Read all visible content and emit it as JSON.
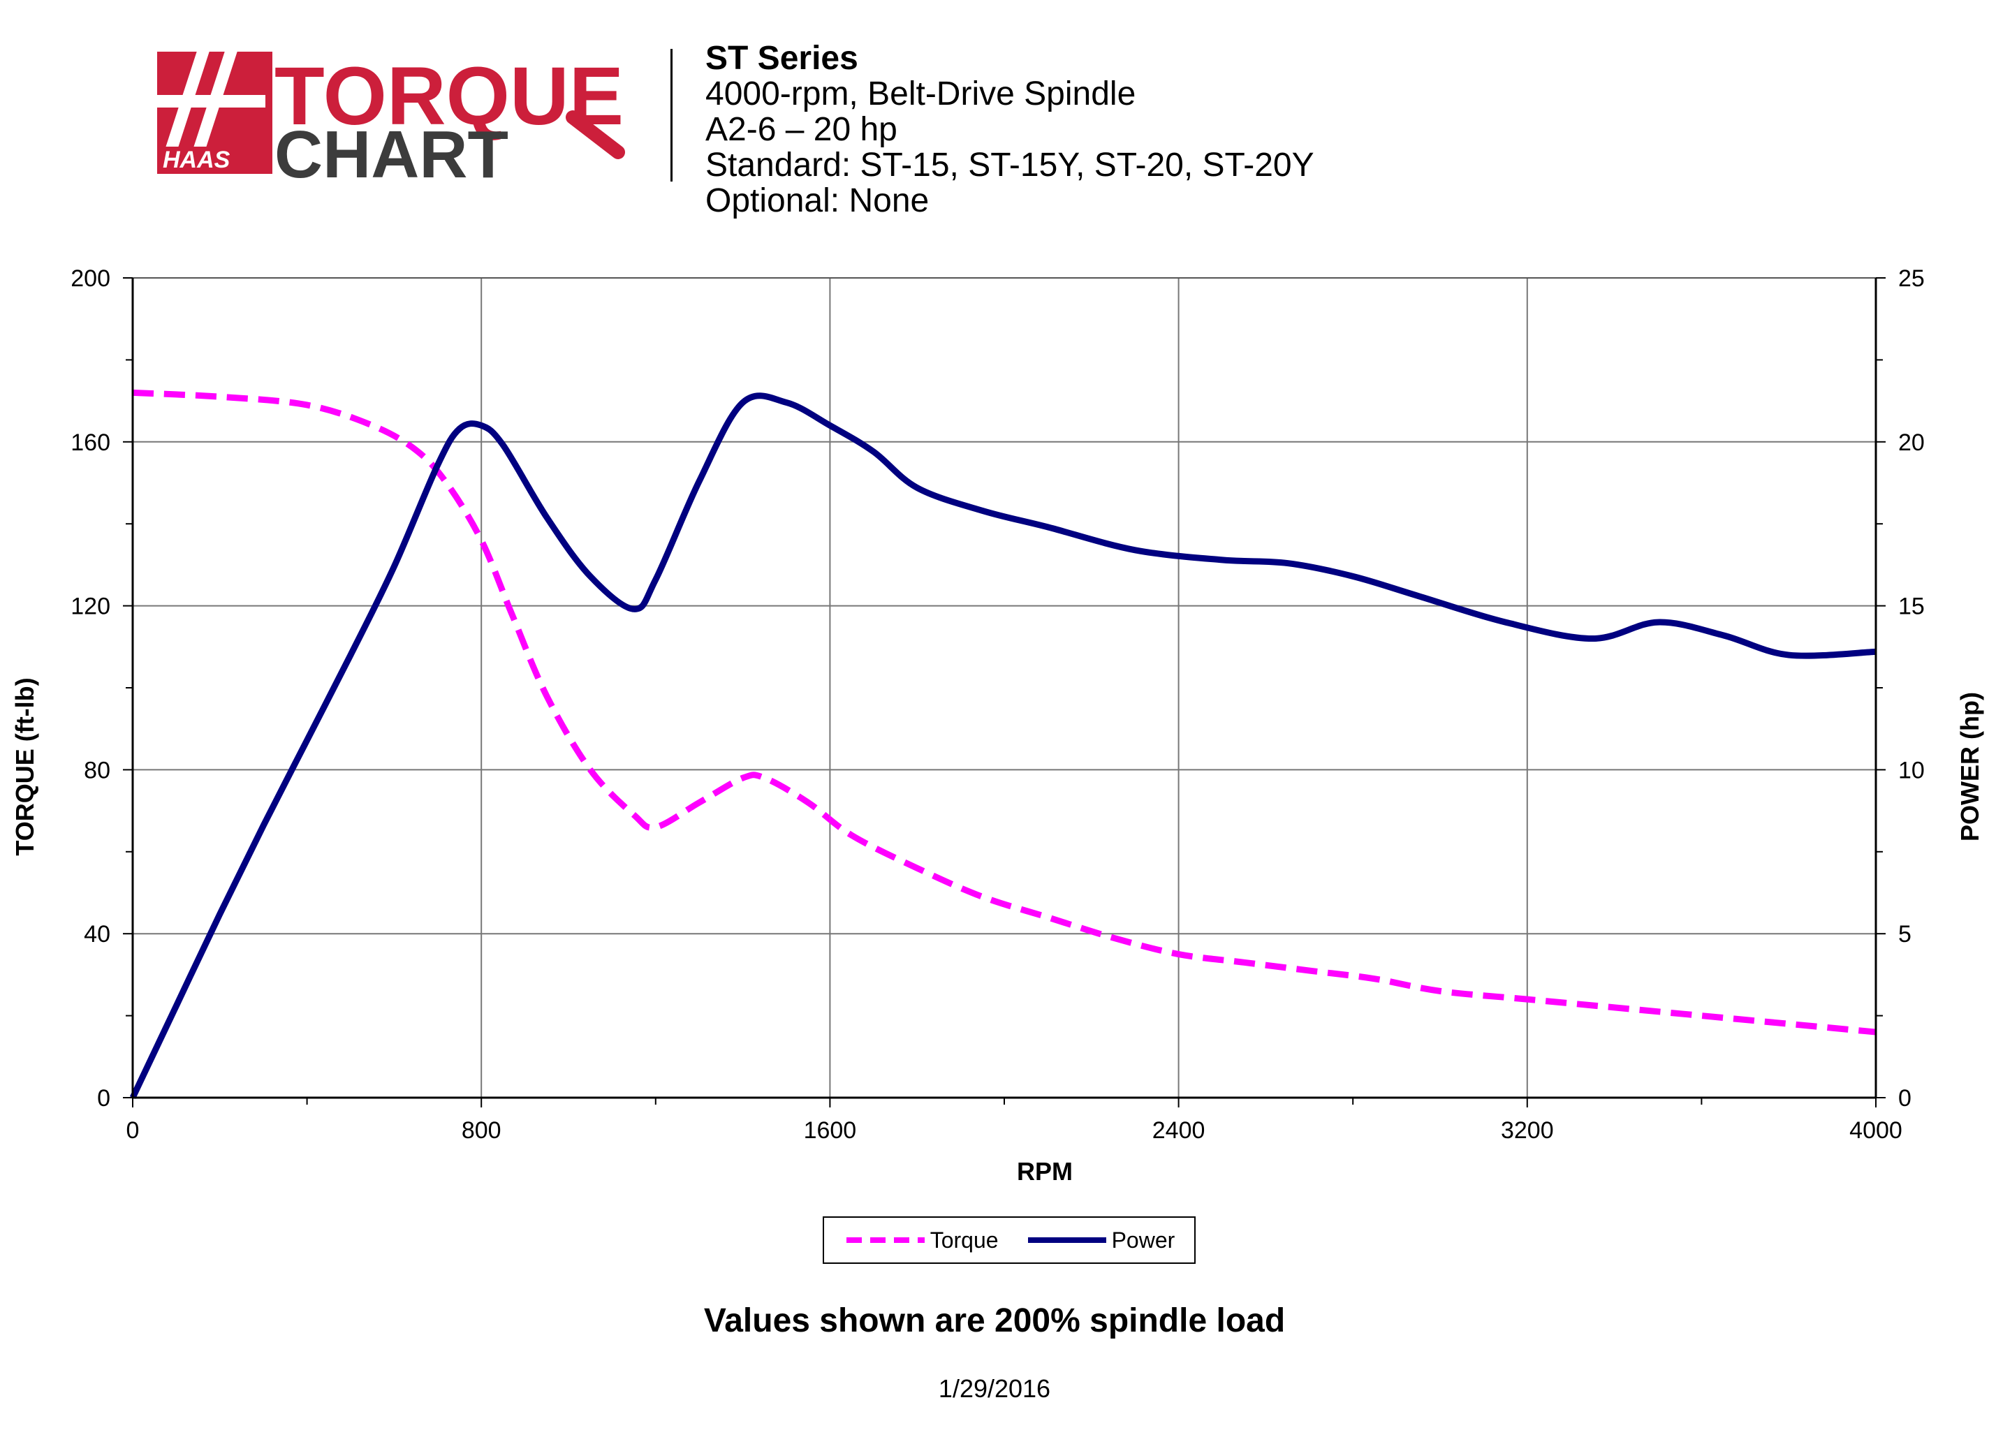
{
  "logo": {
    "brand_text": "HAAS",
    "word1": "TORQUE",
    "word2": "CHART"
  },
  "header": {
    "title": "ST Series",
    "line1": "4000-rpm, Belt-Drive Spindle",
    "line2": "A2-6 – 20 hp",
    "line3": "Standard: ST-15, ST-15Y, ST-20, ST-20Y",
    "line4": "Optional: None"
  },
  "chart_data": {
    "type": "line",
    "xlabel": "RPM",
    "ylabel": "TORQUE (ft-lb)",
    "y2label": "POWER (hp)",
    "xlim": [
      0,
      4000
    ],
    "ylim": [
      0,
      200
    ],
    "y2lim": [
      0,
      25
    ],
    "x_ticks": [
      "0",
      "800",
      "1600",
      "2400",
      "3200",
      "4000"
    ],
    "y_ticks": [
      "0",
      "40",
      "80",
      "120",
      "160",
      "200"
    ],
    "y2_ticks": [
      "0",
      "5",
      "10",
      "15",
      "20",
      "25"
    ],
    "grid": true,
    "legend_position": "bottom-center",
    "series": [
      {
        "name": "Torque",
        "axis": "left",
        "color": "#ff00ff",
        "style": "dashed",
        "x": [
          0,
          200,
          400,
          550,
          650,
          720,
          800,
          870,
          950,
          1050,
          1150,
          1200,
          1300,
          1400,
          1450,
          1550,
          1650,
          1800,
          1950,
          2100,
          2250,
          2400,
          2550,
          2700,
          2850,
          3000,
          3200,
          3400,
          3600,
          3800,
          4000
        ],
        "values": [
          172,
          171,
          169,
          164,
          158,
          150,
          136,
          118,
          98,
          80,
          69,
          66,
          72,
          78,
          78,
          72,
          64,
          56,
          49,
          44,
          39,
          35,
          33,
          31,
          29,
          26,
          24,
          22,
          20,
          18,
          16
        ]
      },
      {
        "name": "Power",
        "axis": "right",
        "color": "#000080",
        "style": "solid",
        "x": [
          0,
          100,
          200,
          300,
          400,
          500,
          600,
          700,
          750,
          800,
          850,
          950,
          1050,
          1150,
          1200,
          1300,
          1400,
          1500,
          1600,
          1700,
          1800,
          1950,
          2100,
          2300,
          2500,
          2650,
          2800,
          2950,
          3150,
          3350,
          3500,
          3650,
          3800,
          4000
        ],
        "values": [
          0,
          2.8,
          5.6,
          8.3,
          10.9,
          13.5,
          16.2,
          19.3,
          20.4,
          20.5,
          19.9,
          17.7,
          15.9,
          14.9,
          15.8,
          18.8,
          21.2,
          21.2,
          20.5,
          19.7,
          18.6,
          17.9,
          17.4,
          16.7,
          16.4,
          16.3,
          15.9,
          15.3,
          14.5,
          14.0,
          14.5,
          14.1,
          13.5,
          13.6
        ]
      }
    ]
  },
  "note": "Values shown are 200% spindle load",
  "date": "1/29/2016"
}
